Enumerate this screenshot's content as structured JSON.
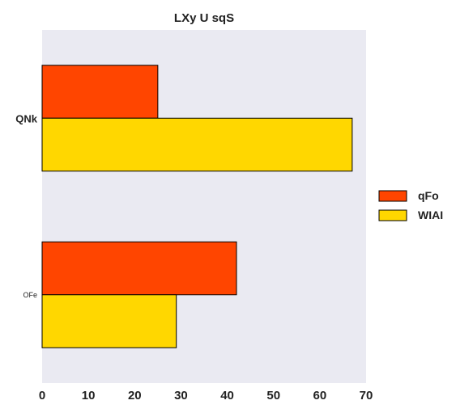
{
  "chart_data": {
    "type": "bar",
    "orientation": "horizontal",
    "title": "LXy U sqS",
    "xlabel": "",
    "ylabel": "",
    "categories": [
      "QNk",
      "OFe"
    ],
    "series": [
      {
        "name": "qFo",
        "values": [
          25,
          42
        ],
        "color": "#ff4500"
      },
      {
        "name": "WIAI",
        "values": [
          67,
          29
        ],
        "color": "#ffd700"
      }
    ],
    "xlim": [
      0,
      70
    ],
    "xticks": [
      0,
      10,
      20,
      30,
      40,
      50,
      60,
      70
    ],
    "grid": false,
    "legend_position": "right",
    "background_color": "#eaeaf2"
  }
}
